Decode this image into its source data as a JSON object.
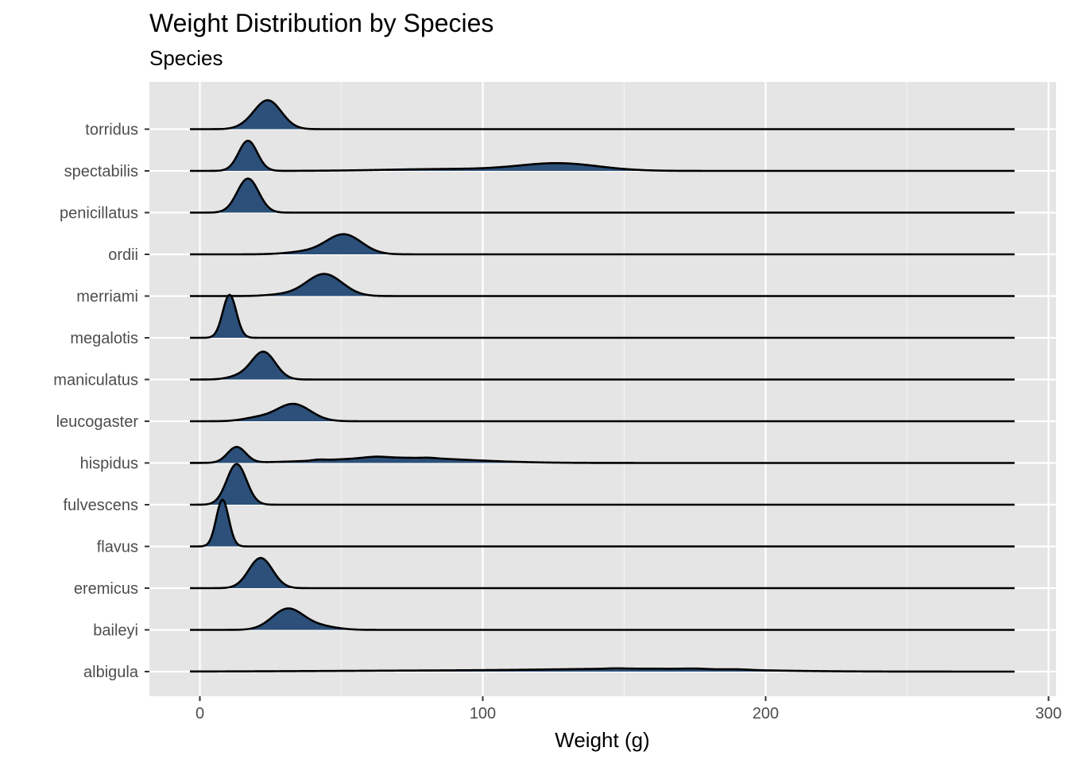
{
  "chart_data": {
    "type": "ridgeline",
    "title": "Weight Distribution by Species",
    "subtitle": "Species",
    "xlabel": "Weight (g)",
    "ylabel": "",
    "xlim": [
      -18,
      301
    ],
    "x_ticks": [
      0,
      100,
      200,
      300
    ],
    "grid": true,
    "legend": "none",
    "fill_color": "#2c5079",
    "panel_color": "#e5e5e5",
    "categories": [
      "torridus",
      "spectabilis",
      "penicillatus",
      "ordii",
      "merriami",
      "megalotis",
      "maniculatus",
      "leucogaster",
      "hispidus",
      "fulvescens",
      "flavus",
      "eremicus",
      "baileyi",
      "albigula"
    ],
    "series": [
      {
        "name": "torridus",
        "components": [
          {
            "mu": 24,
            "sd": 4.8,
            "h": 1.1
          },
          {
            "mu": 16,
            "sd": 3.5,
            "h": 0.05
          }
        ]
      },
      {
        "name": "spectabilis",
        "components": [
          {
            "mu": 17,
            "sd": 3.3,
            "h": 1.15
          },
          {
            "mu": 127,
            "sd": 14,
            "h": 0.28
          },
          {
            "mu": 88,
            "sd": 22,
            "h": 0.07
          }
        ]
      },
      {
        "name": "penicillatus",
        "components": [
          {
            "mu": 17,
            "sd": 3.8,
            "h": 1.3
          }
        ]
      },
      {
        "name": "ordii",
        "components": [
          {
            "mu": 51,
            "sd": 6.2,
            "h": 0.75
          },
          {
            "mu": 38,
            "sd": 7,
            "h": 0.1
          }
        ]
      },
      {
        "name": "merriami",
        "components": [
          {
            "mu": 44,
            "sd": 6.3,
            "h": 0.84
          },
          {
            "mu": 30,
            "sd": 6,
            "h": 0.06
          }
        ]
      },
      {
        "name": "megalotis",
        "components": [
          {
            "mu": 10.5,
            "sd": 2.4,
            "h": 1.64
          }
        ]
      },
      {
        "name": "maniculatus",
        "components": [
          {
            "mu": 22.5,
            "sd": 4.2,
            "h": 1.05
          },
          {
            "mu": 14,
            "sd": 4,
            "h": 0.12
          }
        ]
      },
      {
        "name": "leucogaster",
        "components": [
          {
            "mu": 33,
            "sd": 6,
            "h": 0.66
          },
          {
            "mu": 20,
            "sd": 5,
            "h": 0.12
          }
        ]
      },
      {
        "name": "hispidus",
        "components": [
          {
            "mu": 13,
            "sd": 3.2,
            "h": 0.6
          },
          {
            "mu": 70,
            "sd": 24,
            "h": 0.2
          },
          {
            "mu": 62,
            "sd": 4,
            "h": 0.05
          },
          {
            "mu": 42,
            "sd": 2,
            "h": 0.03
          },
          {
            "mu": 81,
            "sd": 2.5,
            "h": 0.02
          }
        ]
      },
      {
        "name": "fulvescens",
        "components": [
          {
            "mu": 13,
            "sd": 3.5,
            "h": 1.55
          }
        ]
      },
      {
        "name": "flavus",
        "components": [
          {
            "mu": 8,
            "sd": 2.2,
            "h": 1.78
          }
        ]
      },
      {
        "name": "eremicus",
        "components": [
          {
            "mu": 21.5,
            "sd": 4.2,
            "h": 1.15
          }
        ]
      },
      {
        "name": "baileyi",
        "components": [
          {
            "mu": 31,
            "sd": 5.5,
            "h": 0.79
          },
          {
            "mu": 42,
            "sd": 6,
            "h": 0.14
          }
        ]
      },
      {
        "name": "albigula",
        "components": [
          {
            "mu": 160,
            "sd": 32,
            "h": 0.1
          },
          {
            "mu": 90,
            "sd": 45,
            "h": 0.04
          },
          {
            "mu": 175,
            "sd": 4,
            "h": 0.02
          },
          {
            "mu": 190,
            "sd": 4,
            "h": 0.02
          },
          {
            "mu": 147,
            "sd": 3,
            "h": 0.015
          }
        ]
      }
    ]
  }
}
